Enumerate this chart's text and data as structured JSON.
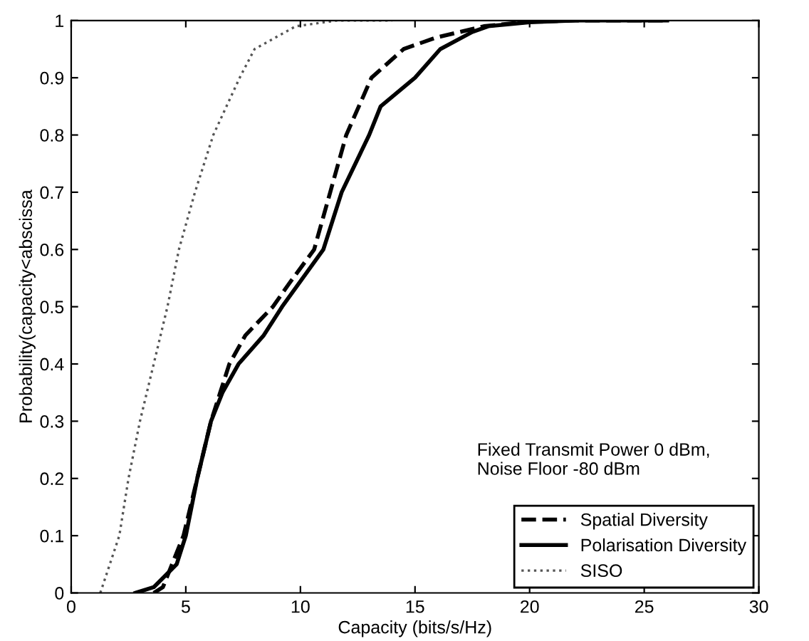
{
  "chart_data": {
    "type": "line",
    "xlabel": "Capacity (bits/s/Hz)",
    "ylabel": "Probability(capacity<abscissa",
    "xlim": [
      0,
      30
    ],
    "ylim": [
      0,
      1
    ],
    "xticks": [
      0,
      5,
      10,
      15,
      20,
      25,
      30
    ],
    "yticks": [
      0,
      0.1,
      0.2,
      0.3,
      0.4,
      0.5,
      0.6,
      0.7,
      0.8,
      0.9,
      1
    ],
    "grid": false,
    "legend": "bottom right",
    "annotations": [
      "Fixed Transmit Power 0 dBm,\nNoise Floor -80 dBm"
    ],
    "series": [
      {
        "name": "Spatial Diversity",
        "color": "#000000",
        "line_style": "dashed",
        "x": [
          3.6,
          4.0,
          4.4,
          4.9,
          5.5,
          6.1,
          6.5,
          6.9,
          7.6,
          8.8,
          9.5,
          10.6,
          11.3,
          12.0,
          13.1,
          14.5,
          15.9,
          18.0,
          20.0,
          22.0,
          26.0
        ],
        "values": [
          0,
          0.01,
          0.05,
          0.1,
          0.2,
          0.3,
          0.35,
          0.4,
          0.45,
          0.5,
          0.54,
          0.6,
          0.7,
          0.8,
          0.9,
          0.95,
          0.97,
          0.99,
          0.998,
          1.0,
          1.0
        ]
      },
      {
        "name": "Polarisation Diversity",
        "color": "#000000",
        "line_style": "solid",
        "x": [
          2.8,
          3.6,
          4.6,
          5.0,
          5.5,
          6.1,
          6.6,
          7.3,
          8.4,
          9.2,
          11.0,
          11.8,
          13.0,
          13.5,
          15.0,
          16.1,
          17.5,
          18.2,
          20.0,
          22.0,
          26.0
        ],
        "values": [
          0,
          0.01,
          0.05,
          0.1,
          0.2,
          0.3,
          0.35,
          0.4,
          0.45,
          0.5,
          0.6,
          0.7,
          0.8,
          0.85,
          0.9,
          0.95,
          0.98,
          0.99,
          0.997,
          1.0,
          1.0
        ]
      },
      {
        "name": "SISO",
        "color": "#555555",
        "line_style": "dotted",
        "x": [
          1.27,
          2.1,
          2.5,
          3.0,
          3.6,
          4.2,
          4.7,
          5.4,
          6.2,
          7.35,
          8.0,
          9.8,
          11.6,
          14.0
        ],
        "values": [
          0,
          0.1,
          0.2,
          0.3,
          0.4,
          0.5,
          0.6,
          0.7,
          0.8,
          0.9,
          0.95,
          0.99,
          1.0,
          1.0
        ]
      }
    ]
  }
}
